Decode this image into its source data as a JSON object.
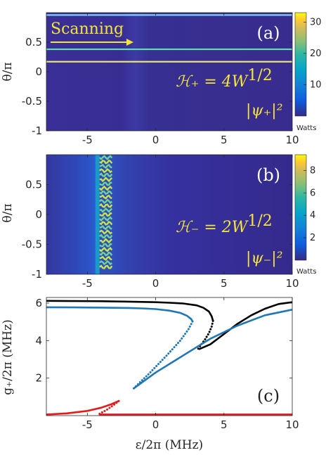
{
  "chart_data": [
    {
      "panel": "(a)",
      "type": "heatmap",
      "xlim": [
        -8,
        10
      ],
      "ylim": [
        -1,
        1
      ],
      "xticks": [
        "-5",
        "0",
        "5",
        "10"
      ],
      "yticks": [
        "0.5",
        "0",
        "-0.5",
        "-1"
      ],
      "ylabel": "θ/π",
      "annotation_scan": "Scanning",
      "annotation_H": "ℋ₊ = 4W",
      "annotation_H_exp": "1/2",
      "annotation_psi": "|ψ₊|²",
      "colorbar": {
        "ticks": [
          "30",
          "20",
          "10"
        ],
        "max": 33,
        "unit": "Watts"
      },
      "background_level": 1,
      "stripes": [
        {
          "theta": 0.96,
          "level": 18
        },
        {
          "theta": 0.38,
          "level": 16
        },
        {
          "theta": 0.17,
          "level": 26
        }
      ]
    },
    {
      "panel": "(b)",
      "type": "heatmap",
      "xlim": [
        -8,
        10
      ],
      "ylim": [
        -1,
        1
      ],
      "xticks": [
        "-5",
        "0",
        "5",
        "10"
      ],
      "yticks": [
        "0.5",
        "0",
        "-0.5",
        "-1"
      ],
      "ylabel": "θ/π",
      "annotation_H": "ℋ₋ = 2W",
      "annotation_H_exp": "1/2",
      "annotation_psi": "|ψ₋|²",
      "colorbar": {
        "ticks": [
          "8",
          "6",
          "4",
          "2"
        ],
        "max": 9.4,
        "unit": "Watts"
      },
      "pattern_region_epsilon": [
        -4.1,
        -3.2
      ]
    },
    {
      "panel": "(c)",
      "type": "line",
      "xlim": [
        -8,
        10
      ],
      "ylim": [
        0,
        6.3
      ],
      "xticks": [
        "-5",
        "0",
        "5",
        "10"
      ],
      "yticks": [
        "6",
        "4",
        "2"
      ],
      "xlabel": "ε/2π (MHz)",
      "ylabel": "g₊/2π (MHz)",
      "colors": {
        "black": "#000000",
        "blue": "#1f77b4",
        "red": "#e41a1c"
      },
      "series": [
        {
          "color": "black",
          "style": "solid",
          "x": [
            -8,
            -6,
            -4,
            -2,
            0,
            1,
            2,
            3,
            3.5,
            3.9,
            4.1,
            4.2
          ],
          "y": [
            6.12,
            6.11,
            6.1,
            6.08,
            6.05,
            6.02,
            5.98,
            5.88,
            5.75,
            5.55,
            5.3,
            5.05
          ]
        },
        {
          "color": "black",
          "style": "dotted",
          "x": [
            4.2,
            4.1,
            3.9,
            3.6,
            3.3,
            3.1
          ],
          "y": [
            5.05,
            4.75,
            4.4,
            4.05,
            3.75,
            3.55
          ]
        },
        {
          "color": "black",
          "style": "solid",
          "x": [
            3.2,
            4,
            5,
            6,
            7,
            8,
            9,
            10
          ],
          "y": [
            3.55,
            3.8,
            4.35,
            4.9,
            5.35,
            5.7,
            5.95,
            6.05
          ]
        },
        {
          "color": "blue",
          "style": "solid",
          "x": [
            -8,
            -6,
            -4,
            -2,
            -1,
            0,
            1,
            1.8,
            2.3,
            2.6,
            2.7
          ],
          "y": [
            5.78,
            5.77,
            5.76,
            5.74,
            5.72,
            5.68,
            5.6,
            5.48,
            5.32,
            5.15,
            5.02
          ]
        },
        {
          "color": "blue",
          "style": "dotted",
          "x": [
            2.7,
            2.4,
            1.8,
            0.8,
            -0.4,
            -1.6
          ],
          "y": [
            5.02,
            4.6,
            4.0,
            3.2,
            2.3,
            1.45
          ]
        },
        {
          "color": "blue",
          "style": "solid",
          "x": [
            -1.6,
            0,
            2,
            4,
            6,
            8,
            10
          ],
          "y": [
            1.45,
            2.3,
            3.2,
            4.1,
            4.8,
            5.35,
            5.65
          ]
        },
        {
          "color": "red",
          "style": "solid",
          "x": [
            -8,
            -6.5,
            -5,
            -4,
            -3.2,
            -2.7
          ],
          "y": [
            0.06,
            0.12,
            0.25,
            0.42,
            0.62,
            0.78
          ]
        },
        {
          "color": "red",
          "style": "dotted",
          "x": [
            -2.7,
            -3.1,
            -3.6,
            -4.1
          ],
          "y": [
            0.78,
            0.55,
            0.3,
            0.1
          ]
        },
        {
          "color": "red",
          "style": "solid",
          "x": [
            -4.1,
            -2,
            0,
            2,
            4,
            6,
            8,
            10
          ],
          "y": [
            0.06,
            0.06,
            0.06,
            0.06,
            0.06,
            0.06,
            0.06,
            0.06
          ]
        }
      ]
    }
  ]
}
